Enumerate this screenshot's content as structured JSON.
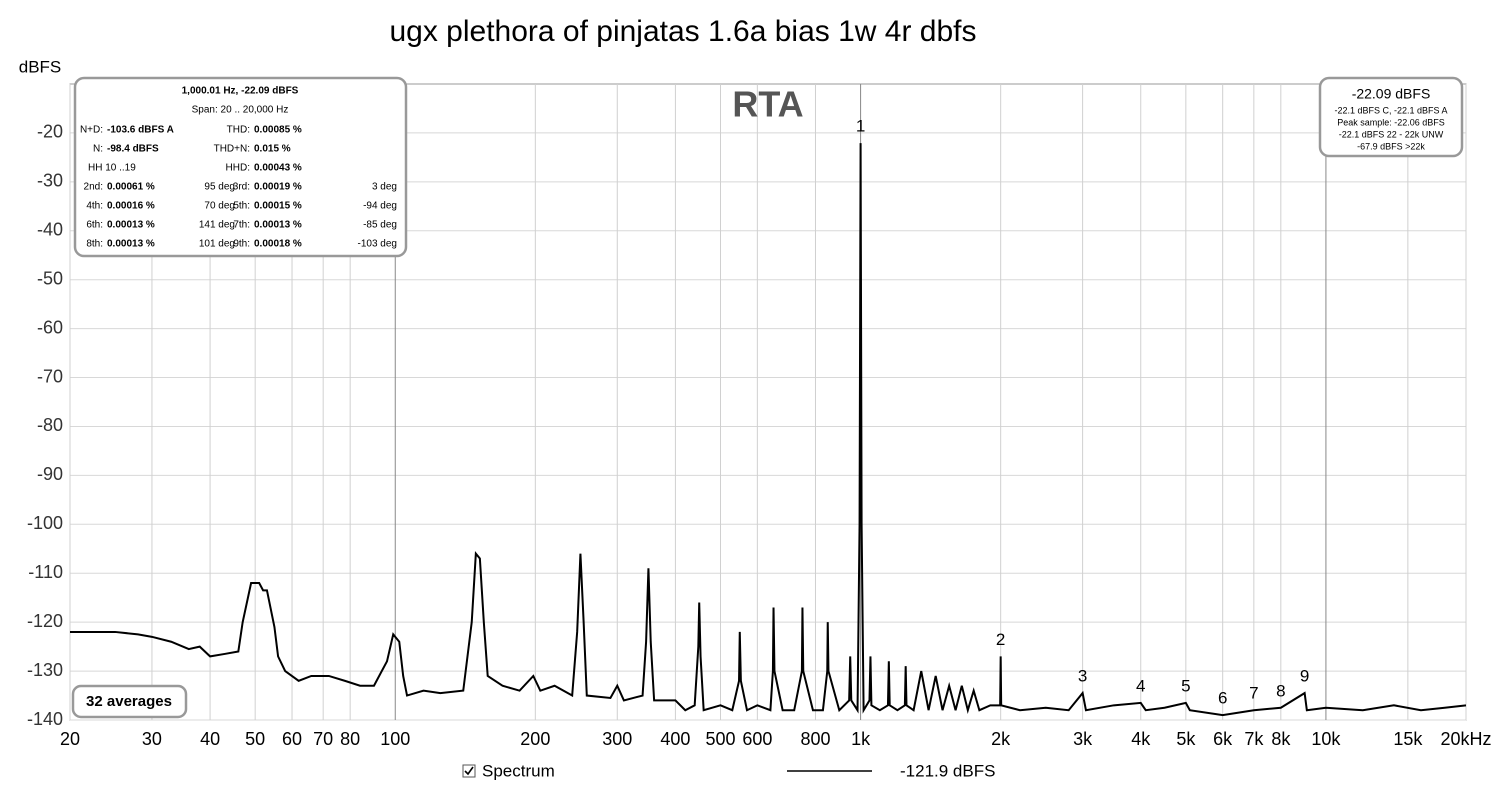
{
  "chart_data": {
    "type": "line",
    "title": "ugx plethora of pinjatas 1.6a bias 1w 4r dbfs",
    "y_label": "dBFS",
    "annotation": "RTA",
    "log_x": true,
    "grid": true,
    "xlim": [
      20,
      20000
    ],
    "ylim": [
      -140,
      -10
    ],
    "xticks": [
      20,
      30,
      40,
      50,
      60,
      70,
      80,
      100,
      200,
      300,
      400,
      500,
      600,
      800,
      {
        "value": 1000,
        "label": "1k"
      },
      {
        "value": 2000,
        "label": "2k"
      },
      {
        "value": 3000,
        "label": "3k"
      },
      {
        "value": 4000,
        "label": "4k"
      },
      {
        "value": 5000,
        "label": "5k"
      },
      {
        "value": 6000,
        "label": "6k"
      },
      {
        "value": 7000,
        "label": "7k"
      },
      {
        "value": 8000,
        "label": "8k"
      },
      {
        "value": 10000,
        "label": "10k"
      },
      {
        "value": 15000,
        "label": "15k"
      },
      {
        "value": 20000,
        "label": "20kHz"
      }
    ],
    "yticks": [
      -140,
      -130,
      -120,
      -110,
      -100,
      -90,
      -80,
      -70,
      -60,
      -50,
      -40,
      -30,
      -20
    ],
    "series": [
      {
        "name": "Spectrum",
        "color": "#000000",
        "x": [
          20,
          25,
          28,
          30,
          33,
          36,
          38,
          40,
          43,
          46,
          47,
          49,
          51,
          52,
          53,
          55,
          56,
          58,
          62,
          66,
          72,
          78,
          84,
          90,
          96,
          99,
          102,
          104,
          106,
          115,
          125,
          140,
          146,
          149,
          152,
          155,
          158,
          170,
          185,
          198,
          205,
          220,
          240,
          246,
          250,
          254,
          258,
          290,
          300,
          310,
          340,
          346,
          350,
          354,
          360,
          400,
          420,
          440,
          448,
          450,
          453,
          460,
          500,
          530,
          548,
          550,
          553,
          570,
          600,
          640,
          648,
          650,
          653,
          680,
          720,
          748,
          750,
          753,
          790,
          830,
          848,
          850,
          853,
          900,
          945,
          950,
          955,
          985,
          995,
          1000,
          1005,
          1015,
          1045,
          1050,
          1055,
          1100,
          1145,
          1150,
          1155,
          1200,
          1245,
          1250,
          1255,
          1300,
          1350,
          1400,
          1450,
          1500,
          1550,
          1600,
          1650,
          1700,
          1750,
          1800,
          1900,
          1995,
          2000,
          2005,
          2200,
          2500,
          2800,
          3000,
          3050,
          3500,
          4000,
          4100,
          4500,
          5000,
          5100,
          6000,
          7000,
          8000,
          9000,
          9100,
          10000,
          12000,
          14000,
          16000,
          18000,
          20000
        ],
        "values": [
          -122,
          -122,
          -122.5,
          -123,
          -124,
          -125.5,
          -125,
          -127,
          -126.5,
          -126,
          -120,
          -112,
          -112,
          -113.5,
          -113.5,
          -121,
          -127,
          -130,
          -132,
          -131,
          -131,
          -132,
          -133,
          -133,
          -128,
          -122.5,
          -124,
          -131,
          -135,
          -134,
          -134.5,
          -134,
          -120,
          -106,
          -107,
          -120,
          -131,
          -133,
          -134,
          -131,
          -134,
          -133,
          -135,
          -122,
          -106,
          -120,
          -135,
          -135.5,
          -133,
          -136,
          -135,
          -124,
          -109,
          -124,
          -136,
          -136,
          -138,
          -137,
          -125,
          -116,
          -127,
          -138,
          -137,
          -138,
          -132,
          -122,
          -132,
          -138,
          -137,
          -138,
          -130,
          -117,
          -130,
          -138,
          -138,
          -130,
          -117,
          -130,
          -138,
          -138,
          -130,
          -120,
          -130,
          -138,
          -136,
          -127,
          -136,
          -138,
          -100,
          -22.09,
          -100,
          -138,
          -136,
          -127,
          -137,
          -138,
          -137,
          -128,
          -137,
          -138,
          -137,
          -129,
          -137,
          -138,
          -130,
          -138,
          -131,
          -138,
          -133,
          -138,
          -133,
          -138,
          -134,
          -138,
          -137,
          -137,
          -127,
          -137,
          -138,
          -137.5,
          -138,
          -134.5,
          -138,
          -137,
          -136.5,
          -138,
          -137.5,
          -136.5,
          -138,
          -139,
          -138,
          -137.5,
          -134.5,
          -138,
          -137.5,
          -138,
          -137,
          -138,
          -137.5,
          -137
        ]
      }
    ],
    "markers": [
      {
        "label": "1",
        "x": 1000,
        "y": -22.09
      },
      {
        "label": "2",
        "x": 2000,
        "y": -127
      },
      {
        "label": "3",
        "x": 3000,
        "y": -134.5
      },
      {
        "label": "4",
        "x": 4000,
        "y": -136.5
      },
      {
        "label": "5",
        "x": 5000,
        "y": -136.5
      },
      {
        "label": "6",
        "x": 6000,
        "y": -139
      },
      {
        "label": "7",
        "x": 7000,
        "y": -138
      },
      {
        "label": "8",
        "x": 8000,
        "y": -137.5
      },
      {
        "label": "9",
        "x": 9000,
        "y": -134.5
      }
    ],
    "info_box": {
      "header": [
        "1,000.01 Hz, -22.09 dBFS",
        "Span: 20 .. 20,000 Hz"
      ],
      "rows": [
        {
          "left": [
            "N+D:",
            "-103.6 dBFS A"
          ],
          "right": [
            "THD:",
            "0.00085 %"
          ]
        },
        {
          "left": [
            "N:",
            "-98.4 dBFS"
          ],
          "right": [
            "THD+N:",
            "0.015 %"
          ]
        },
        {
          "left": [
            "HH 10 ..19"
          ],
          "right": [
            "HHD:",
            "0.00043 %"
          ]
        },
        {
          "left": [
            "2nd:",
            "0.00061 %",
            "95 deg"
          ],
          "right": [
            "3rd:",
            "0.00019 %",
            "3 deg"
          ]
        },
        {
          "left": [
            "4th:",
            "0.00016 %",
            "70 deg"
          ],
          "right": [
            "5th:",
            "0.00015 %",
            "-94 deg"
          ]
        },
        {
          "left": [
            "6th:",
            "0.00013 %",
            "141 deg"
          ],
          "right": [
            "7th:",
            "0.00013 %",
            "-85 deg"
          ]
        },
        {
          "left": [
            "8th:",
            "0.00013 %",
            "101 deg"
          ],
          "right": [
            "9th:",
            "0.00018 %",
            "-103 deg"
          ]
        }
      ]
    },
    "level_box": {
      "main": "-22.09 dBFS",
      "lines": [
        "-22.1 dBFS C, -22.1 dBFS A",
        "Peak sample: -22.06 dBFS",
        "-22.1 dBFS 22 - 22k UNW",
        "-67.9 dBFS >22k"
      ]
    },
    "averages": "32 averages",
    "legend_value": "-121.9 dBFS"
  }
}
